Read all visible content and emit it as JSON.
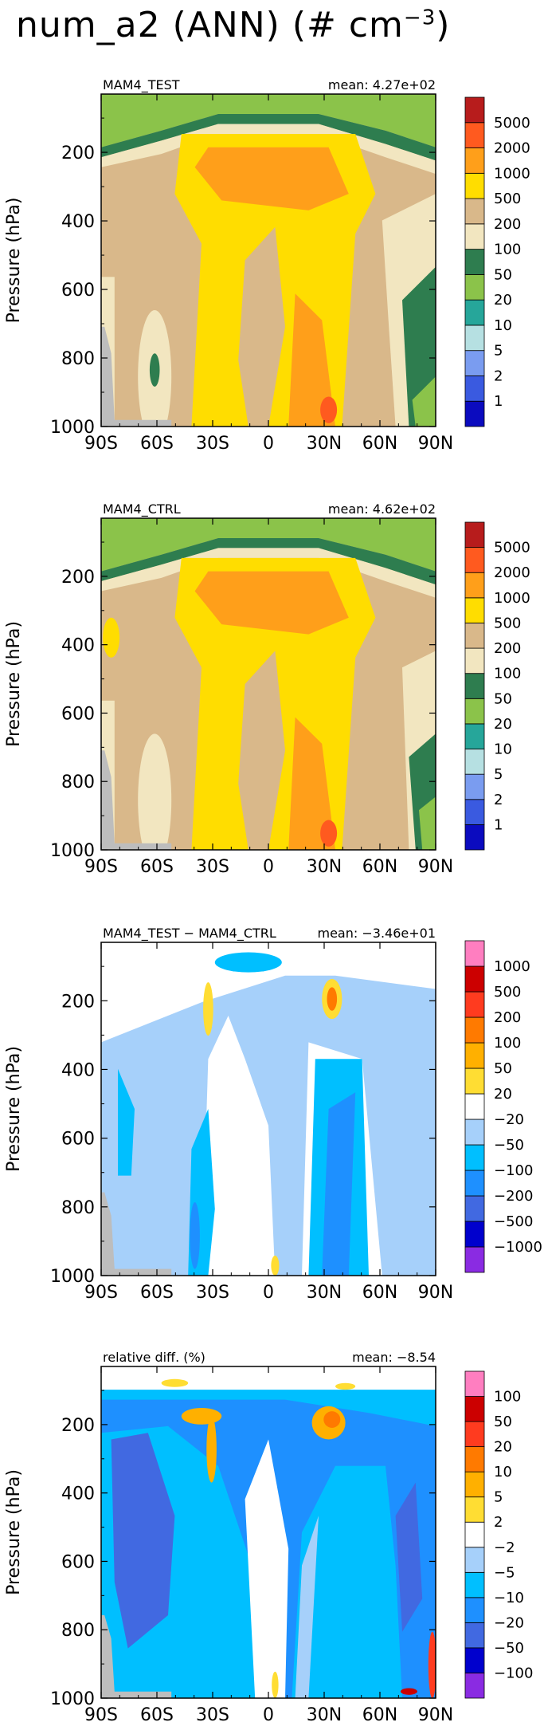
{
  "title": {
    "main": "num_a2 (ANN) (# cm",
    "exponent": "−3",
    "close": ")"
  },
  "chart_data": [
    {
      "type": "heatmap",
      "label": "MAM4_TEST",
      "mean_text": "mean: 4.27e+02",
      "ylabel": "Pressure (hPa)",
      "x_ticks": [
        "90S",
        "60S",
        "30S",
        "0",
        "30N",
        "60N",
        "90N"
      ],
      "y_ticks": [
        "200",
        "400",
        "600",
        "800",
        "1000"
      ],
      "xlim": [
        -90,
        90
      ],
      "ylim": [
        1000,
        30
      ],
      "y_reversed": true,
      "levels": [
        "1",
        "2",
        "5",
        "10",
        "20",
        "50",
        "100",
        "200",
        "500",
        "1000",
        "2000",
        "5000"
      ],
      "colors": [
        "#0b0bbf",
        "#3a5ae0",
        "#7a9cf0",
        "#b6e0e2",
        "#26a69a",
        "#8bc34a",
        "#2e7d4f",
        "#f2e6c0",
        "#d9b88a",
        "#ffdd00",
        "#ff9f1a",
        "#ff5a1f",
        "#b71c1c"
      ]
    },
    {
      "type": "heatmap",
      "label": "MAM4_CTRL",
      "mean_text": "mean: 4.62e+02",
      "ylabel": "Pressure (hPa)",
      "x_ticks": [
        "90S",
        "60S",
        "30S",
        "0",
        "30N",
        "60N",
        "90N"
      ],
      "y_ticks": [
        "200",
        "400",
        "600",
        "800",
        "1000"
      ],
      "xlim": [
        -90,
        90
      ],
      "ylim": [
        1000,
        30
      ],
      "y_reversed": true,
      "levels": [
        "1",
        "2",
        "5",
        "10",
        "20",
        "50",
        "100",
        "200",
        "500",
        "1000",
        "2000",
        "5000"
      ],
      "colors": [
        "#0b0bbf",
        "#3a5ae0",
        "#7a9cf0",
        "#b6e0e2",
        "#26a69a",
        "#8bc34a",
        "#2e7d4f",
        "#f2e6c0",
        "#d9b88a",
        "#ffdd00",
        "#ff9f1a",
        "#ff5a1f",
        "#b71c1c"
      ]
    },
    {
      "type": "heatmap",
      "label": "MAM4_TEST − MAM4_CTRL",
      "mean_text": "mean: −3.46e+01",
      "ylabel": "Pressure (hPa)",
      "x_ticks": [
        "90S",
        "60S",
        "30S",
        "0",
        "30N",
        "60N",
        "90N"
      ],
      "y_ticks": [
        "200",
        "400",
        "600",
        "800",
        "1000"
      ],
      "xlim": [
        -90,
        90
      ],
      "ylim": [
        1000,
        30
      ],
      "y_reversed": true,
      "levels": [
        "−1000",
        "−500",
        "−200",
        "−100",
        "−50",
        "−20",
        "20",
        "50",
        "100",
        "200",
        "500",
        "1000"
      ],
      "colors": [
        "#8a2be2",
        "#0000cd",
        "#4169e1",
        "#1e90ff",
        "#00bfff",
        "#a6d0fa",
        "#ffffff",
        "#ffdd33",
        "#ffb000",
        "#ff7a00",
        "#ff3b1f",
        "#cc0000",
        "#ff7ec0"
      ]
    },
    {
      "type": "heatmap",
      "label": "relative diff. (%)",
      "mean_text": "mean: −8.54",
      "ylabel": "Pressure (hPa)",
      "x_ticks": [
        "90S",
        "60S",
        "30S",
        "0",
        "30N",
        "60N",
        "90N"
      ],
      "y_ticks": [
        "200",
        "400",
        "600",
        "800",
        "1000"
      ],
      "xlim": [
        -90,
        90
      ],
      "ylim": [
        1000,
        30
      ],
      "y_reversed": true,
      "levels": [
        "−100",
        "−50",
        "−20",
        "−10",
        "−5",
        "−2",
        "2",
        "5",
        "10",
        "20",
        "50",
        "100"
      ],
      "colors": [
        "#8a2be2",
        "#0000cd",
        "#4169e1",
        "#1e90ff",
        "#00bfff",
        "#a6d0fa",
        "#ffffff",
        "#ffdd33",
        "#ffb000",
        "#ff7a00",
        "#ff3b1f",
        "#cc0000",
        "#ff7ec0"
      ]
    }
  ]
}
